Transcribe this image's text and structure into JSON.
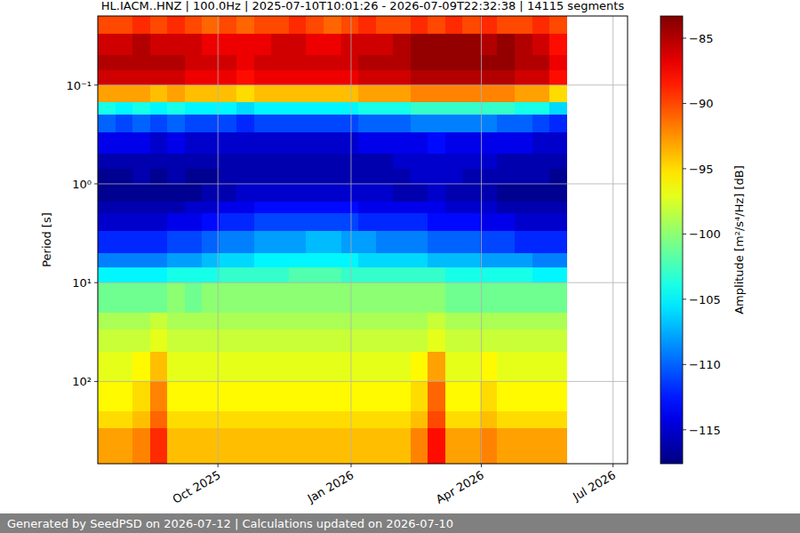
{
  "chart_data": {
    "type": "heatmap",
    "title": "HL.IACM..HNZ | 100.0Hz | 2025-07-10T10:01:26 - 2026-07-09T22:32:38 | 14115 segments",
    "y_label": "Period [s]",
    "x": [
      "2025-07-10",
      "2025-07-22",
      "2025-08-03",
      "2025-08-15",
      "2025-08-27",
      "2025-09-08",
      "2025-09-20",
      "2025-10-02",
      "2025-10-14",
      "2025-10-26",
      "2025-11-07",
      "2025-11-19",
      "2025-12-01",
      "2025-12-13",
      "2025-12-25",
      "2026-01-06",
      "2026-01-18",
      "2026-01-30",
      "2026-02-11",
      "2026-02-23",
      "2026-03-07",
      "2026-03-19",
      "2026-03-31",
      "2026-04-12",
      "2026-04-24",
      "2026-05-06",
      "2026-05-18",
      "2026-05-30",
      "2026-06-11",
      "2026-06-23",
      "2026-07-05",
      "2026-07-11"
    ],
    "y": [
      0.02,
      0.03,
      0.05,
      0.07,
      0.1,
      0.15,
      0.2,
      0.3,
      0.5,
      0.7,
      1,
      1.5,
      2,
      3,
      5,
      7,
      10,
      20,
      30,
      50,
      100,
      200,
      300,
      680
    ],
    "values": [
      [
        -90,
        -90,
        -89,
        -90,
        -89,
        -90,
        -91,
        -90,
        -91,
        -90,
        -90,
        -89,
        -90,
        -91,
        -90,
        -89,
        -90,
        -90,
        -89,
        -90,
        -89,
        -90,
        -89,
        -90,
        -90,
        -89,
        -90,
        null,
        null,
        null,
        null
      ],
      [
        -86,
        -86,
        -85,
        -86,
        -86,
        -86,
        -87,
        -87,
        -87,
        -87,
        -86,
        -86,
        -87,
        -87,
        -86,
        -86,
        -86,
        -85,
        -84,
        -84,
        -84,
        -84,
        -85,
        -84,
        -85,
        -86,
        -88,
        null,
        null,
        null,
        null
      ],
      [
        -85,
        -85,
        -85,
        -85,
        -85,
        -86,
        -86,
        -86,
        -87,
        -86,
        -86,
        -86,
        -86,
        -86,
        -86,
        -85,
        -85,
        -85,
        -84,
        -84,
        -84,
        -84,
        -84,
        -84,
        -85,
        -85,
        -87,
        null,
        null,
        null,
        null
      ],
      [
        -86,
        -86,
        -86,
        -86,
        -86,
        -87,
        -87,
        -87,
        -88,
        -87,
        -87,
        -87,
        -87,
        -87,
        -87,
        -86,
        -86,
        -86,
        -85,
        -85,
        -85,
        -85,
        -85,
        -85,
        -86,
        -86,
        -88,
        null,
        null,
        null,
        null
      ],
      [
        -93,
        -93,
        -93,
        -94,
        -93,
        -94,
        -94,
        -94,
        -95,
        -94,
        -94,
        -94,
        -94,
        -94,
        -94,
        -93,
        -93,
        -93,
        -92,
        -92,
        -92,
        -92,
        -92,
        -92,
        -93,
        -93,
        -95,
        null,
        null,
        null,
        null
      ],
      [
        -104,
        -105,
        -104,
        -105,
        -104,
        -105,
        -105,
        -105,
        -106,
        -105,
        -105,
        -105,
        -105,
        -105,
        -105,
        -104,
        -104,
        -104,
        -103,
        -103,
        -103,
        -103,
        -103,
        -103,
        -104,
        -104,
        -106,
        null,
        null,
        null,
        null
      ],
      [
        -110,
        -111,
        -110,
        -111,
        -110,
        -111,
        -111,
        -111,
        -112,
        -111,
        -111,
        -111,
        -111,
        -111,
        -111,
        -110,
        -110,
        -110,
        -109,
        -109,
        -109,
        -109,
        -109,
        -110,
        -110,
        -111,
        -112,
        null,
        null,
        null,
        null
      ],
      [
        -114,
        -114,
        -114,
        -115,
        -114,
        -115,
        -115,
        -115,
        -115,
        -115,
        -115,
        -115,
        -115,
        -115,
        -115,
        -114,
        -114,
        -114,
        -114,
        -113,
        -114,
        -114,
        -114,
        -114,
        -114,
        -115,
        -115,
        null,
        null,
        null,
        null
      ],
      [
        -116,
        -116,
        -116,
        -116,
        -116,
        -116,
        -116,
        -116,
        -116,
        -116,
        -116,
        -116,
        -116,
        -116,
        -116,
        -116,
        -116,
        -115,
        -115,
        -115,
        -115,
        -115,
        -115,
        -116,
        -116,
        -116,
        -116,
        null,
        null,
        null,
        null
      ],
      [
        -117,
        -117,
        -116,
        -117,
        -116,
        -117,
        -117,
        -116,
        -116,
        -116,
        -116,
        -116,
        -116,
        -116,
        -116,
        -116,
        -116,
        -116,
        -115,
        -115,
        -115,
        -116,
        -116,
        -116,
        -116,
        -116,
        -117,
        null,
        null,
        null,
        null
      ],
      [
        -117,
        -117,
        -117,
        -117,
        -117,
        -117,
        -116,
        -116,
        -115,
        -115,
        -115,
        -115,
        -115,
        -115,
        -115,
        -115,
        -115,
        -116,
        -116,
        -115,
        -116,
        -116,
        -116,
        -117,
        -117,
        -117,
        -117,
        null,
        null,
        null,
        null
      ],
      [
        -116,
        -116,
        -116,
        -116,
        -116,
        -115,
        -115,
        -114,
        -114,
        -113,
        -113,
        -113,
        -113,
        -113,
        -113,
        -114,
        -114,
        -114,
        -114,
        -114,
        -115,
        -115,
        -115,
        -116,
        -116,
        -116,
        -116,
        null,
        null,
        null,
        null
      ],
      [
        -115,
        -115,
        -115,
        -115,
        -114,
        -114,
        -113,
        -112,
        -112,
        -111,
        -111,
        -111,
        -111,
        -111,
        -111,
        -112,
        -112,
        -112,
        -112,
        -113,
        -113,
        -113,
        -114,
        -114,
        -115,
        -115,
        -115,
        null,
        null,
        null,
        null
      ],
      [
        -112,
        -112,
        -112,
        -112,
        -111,
        -111,
        -110,
        -109,
        -109,
        -108,
        -108,
        -108,
        -107,
        -107,
        -108,
        -108,
        -109,
        -109,
        -109,
        -110,
        -110,
        -110,
        -111,
        -111,
        -112,
        -112,
        -112,
        null,
        null,
        null,
        null
      ],
      [
        -109,
        -109,
        -109,
        -109,
        -108,
        -108,
        -107,
        -106,
        -106,
        -105,
        -105,
        -105,
        -105,
        -105,
        -105,
        -106,
        -106,
        -106,
        -106,
        -107,
        -107,
        -107,
        -108,
        -108,
        -108,
        -109,
        -109,
        null,
        null,
        null,
        null
      ],
      [
        -105,
        -105,
        -105,
        -105,
        -104,
        -104,
        -104,
        -103,
        -103,
        -103,
        -103,
        -102,
        -102,
        -102,
        -103,
        -103,
        -103,
        -103,
        -103,
        -103,
        -104,
        -104,
        -104,
        -104,
        -104,
        -105,
        -105,
        null,
        null,
        null,
        null
      ],
      [
        -101,
        -101,
        -101,
        -101,
        -100,
        -101,
        -100,
        -100,
        -100,
        -100,
        -100,
        -100,
        -100,
        -100,
        -100,
        -100,
        -100,
        -100,
        -100,
        -100,
        -101,
        -101,
        -101,
        -101,
        -101,
        -101,
        -101,
        null,
        null,
        null,
        null
      ],
      [
        -99,
        -99,
        -99,
        -98,
        -99,
        -99,
        -99,
        -99,
        -99,
        -99,
        -99,
        -99,
        -99,
        -99,
        -99,
        -99,
        -99,
        -99,
        -99,
        -98,
        -99,
        -99,
        -99,
        -99,
        -99,
        -99,
        -99,
        null,
        null,
        null,
        null
      ],
      [
        -98,
        -98,
        -98,
        -97,
        -98,
        -98,
        -98,
        -98,
        -98,
        -98,
        -98,
        -98,
        -98,
        -98,
        -98,
        -98,
        -98,
        -98,
        -98,
        -97,
        -98,
        -98,
        -98,
        -98,
        -98,
        -98,
        -98,
        null,
        null,
        null,
        null
      ],
      [
        -97,
        -97,
        -96,
        -94,
        -97,
        -97,
        -97,
        -97,
        -97,
        -97,
        -97,
        -97,
        -97,
        -97,
        -97,
        -97,
        -97,
        -97,
        -96,
        -93,
        -97,
        -97,
        -96,
        -97,
        -97,
        -97,
        -97,
        null,
        null,
        null,
        null
      ],
      [
        -96,
        -96,
        -95,
        -92,
        -96,
        -96,
        -96,
        -96,
        -96,
        -96,
        -96,
        -96,
        -96,
        -96,
        -96,
        -96,
        -96,
        -96,
        -95,
        -91,
        -96,
        -96,
        -95,
        -96,
        -96,
        -96,
        -96,
        null,
        null,
        null,
        null
      ],
      [
        -95,
        -95,
        -94,
        -91,
        -95,
        -95,
        -95,
        -95,
        -95,
        -95,
        -95,
        -95,
        -95,
        -95,
        -95,
        -95,
        -95,
        -95,
        -94,
        -90,
        -95,
        -95,
        -94,
        -95,
        -95,
        -95,
        -95,
        null,
        null,
        null,
        null
      ],
      [
        -93,
        -93,
        -92,
        -89,
        -94,
        -94,
        -94,
        -94,
        -94,
        -94,
        -94,
        -94,
        -94,
        -94,
        -94,
        -94,
        -94,
        -94,
        -92,
        -88,
        -93,
        -93,
        -92,
        -93,
        -93,
        -93,
        -93,
        null,
        null,
        null,
        null
      ]
    ],
    "xlim": [
      "2025-07-10",
      "2026-07-11"
    ],
    "ylim": [
      0.02,
      680
    ],
    "xticks": [
      {
        "value": "2025-10-01",
        "label": "Oct 2025"
      },
      {
        "value": "2026-01-01",
        "label": "Jan 2026"
      },
      {
        "value": "2026-04-01",
        "label": "Apr 2026"
      },
      {
        "value": "2026-07-01",
        "label": "Jul 2026"
      }
    ],
    "yticks": [
      {
        "value": 0.1,
        "label": "10⁻¹"
      },
      {
        "value": 1,
        "label": "10⁰"
      },
      {
        "value": 10,
        "label": "10¹"
      },
      {
        "value": 100,
        "label": "10²"
      }
    ],
    "log": "y",
    "grid": true,
    "colorbar": {
      "label": "Amplitude [m²/s⁴/Hz] [dB]",
      "lim": [
        -117.6,
        -83.3
      ],
      "ticks": [
        {
          "value": -115,
          "label": "−115"
        },
        {
          "value": -110,
          "label": "−110"
        },
        {
          "value": -105,
          "label": "−105"
        },
        {
          "value": -100,
          "label": "−100"
        },
        {
          "value": -95,
          "label": "−95"
        },
        {
          "value": -90,
          "label": "−90"
        },
        {
          "value": -85,
          "label": "−85"
        }
      ]
    }
  },
  "footer": "Generated by SeedPSD on 2026-07-12 | Calculations updated on 2026-07-10"
}
